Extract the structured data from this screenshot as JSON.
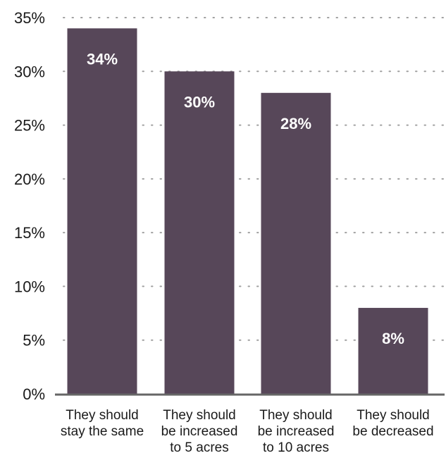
{
  "chart_data": {
    "type": "bar",
    "categories": [
      [
        "They should",
        "stay the same"
      ],
      [
        "They should",
        "be increased",
        "to 5 acres"
      ],
      [
        "They should",
        "be increased",
        "to 10 acres"
      ],
      [
        "They should",
        "be decreased"
      ]
    ],
    "values": [
      34,
      30,
      28,
      8
    ],
    "data_labels": [
      "34%",
      "30%",
      "28%",
      "8%"
    ],
    "y_ticks": [
      "0%",
      "5%",
      "10%",
      "15%",
      "20%",
      "25%",
      "30%",
      "35%"
    ],
    "ylim": [
      0,
      35
    ],
    "grid": true,
    "bar_color": "#574759",
    "grid_color": "#a0a0a0",
    "baseline_color": "#666666"
  }
}
